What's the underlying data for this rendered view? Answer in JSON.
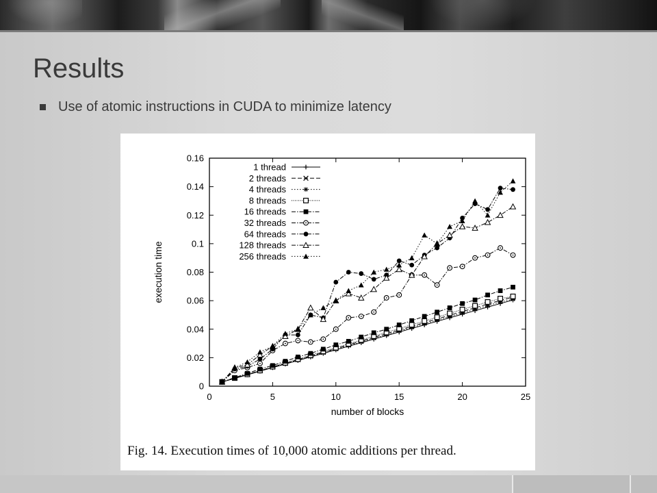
{
  "slide": {
    "title": "Results",
    "bullets": [
      {
        "text": "Use of atomic instructions in CUDA to minimize latency"
      }
    ]
  },
  "figure": {
    "caption": "Fig. 14.  Execution times of 10,000 atomic additions per thread."
  },
  "chart_data": {
    "type": "line",
    "xlabel": "number of blocks",
    "ylabel": "execution time",
    "xlim": [
      0,
      25
    ],
    "ylim": [
      0,
      0.16
    ],
    "xticks": [
      "0",
      "5",
      "10",
      "15",
      "20",
      "25"
    ],
    "yticks": [
      "0",
      "0.02",
      "0.04",
      "0.06",
      "0.08",
      "0.1",
      "0.12",
      "0.14",
      "0.16"
    ],
    "legend_position": "top-left",
    "grid": false,
    "x": [
      1,
      2,
      3,
      4,
      5,
      6,
      7,
      8,
      9,
      10,
      11,
      12,
      13,
      14,
      15,
      16,
      17,
      18,
      19,
      20,
      21,
      22,
      23,
      24
    ],
    "series": [
      {
        "name": "1 thread",
        "marker": "plus",
        "dash": "solid",
        "values": [
          0.003,
          0.0055,
          0.008,
          0.0105,
          0.013,
          0.0155,
          0.018,
          0.0205,
          0.023,
          0.0255,
          0.028,
          0.0305,
          0.033,
          0.0355,
          0.038,
          0.0405,
          0.043,
          0.0455,
          0.048,
          0.0505,
          0.053,
          0.0555,
          0.058,
          0.0605
        ]
      },
      {
        "name": "2 threads",
        "marker": "x",
        "dash": "dashed",
        "values": [
          0.003,
          0.0056,
          0.0082,
          0.0108,
          0.0134,
          0.016,
          0.0186,
          0.0212,
          0.0238,
          0.0264,
          0.029,
          0.0316,
          0.0342,
          0.0368,
          0.0394,
          0.042,
          0.0446,
          0.0472,
          0.0498,
          0.0524,
          0.055,
          0.0576,
          0.0602,
          0.0625
        ]
      },
      {
        "name": "4 threads",
        "marker": "asterisk",
        "dash": "dotted",
        "values": [
          0.003,
          0.0055,
          0.0081,
          0.0106,
          0.0132,
          0.0157,
          0.0183,
          0.0208,
          0.0234,
          0.0259,
          0.0285,
          0.031,
          0.0336,
          0.0361,
          0.0387,
          0.0412,
          0.0438,
          0.0463,
          0.0489,
          0.0514,
          0.054,
          0.0565,
          0.0591,
          0.061
        ]
      },
      {
        "name": "8 threads",
        "marker": "open-square",
        "dash": "fine-dotted",
        "values": [
          0.003,
          0.0057,
          0.0083,
          0.011,
          0.0137,
          0.0164,
          0.019,
          0.0217,
          0.0244,
          0.027,
          0.0297,
          0.0324,
          0.0351,
          0.0377,
          0.0404,
          0.0431,
          0.0457,
          0.0484,
          0.0511,
          0.0538,
          0.0564,
          0.0591,
          0.0615,
          0.063
        ]
      },
      {
        "name": "16 threads",
        "marker": "filled-square",
        "dash": "dash-dot",
        "values": [
          0.003,
          0.006,
          0.009,
          0.012,
          0.0145,
          0.0175,
          0.0205,
          0.023,
          0.026,
          0.029,
          0.0315,
          0.0345,
          0.0375,
          0.04,
          0.043,
          0.046,
          0.049,
          0.052,
          0.055,
          0.058,
          0.0605,
          0.064,
          0.067,
          0.0695
        ]
      },
      {
        "name": "32 threads",
        "marker": "open-circle",
        "dash": "dash-dot",
        "values": [
          0.003,
          0.011,
          0.013,
          0.016,
          0.025,
          0.03,
          0.032,
          0.031,
          0.033,
          0.04,
          0.048,
          0.049,
          0.052,
          0.062,
          0.064,
          0.078,
          0.078,
          0.071,
          0.083,
          0.084,
          0.09,
          0.092,
          0.097,
          0.092
        ]
      },
      {
        "name": "64 threads",
        "marker": "filled-circle",
        "dash": "dash-dot",
        "values": [
          0.003,
          0.012,
          0.014,
          0.019,
          0.026,
          0.036,
          0.036,
          0.05,
          0.048,
          0.073,
          0.08,
          0.079,
          0.075,
          0.078,
          0.088,
          0.085,
          0.092,
          0.097,
          0.104,
          0.118,
          0.128,
          0.124,
          0.139,
          0.138
        ]
      },
      {
        "name": "128 threads",
        "marker": "open-triangle",
        "dash": "dash-dot",
        "values": [
          0.003,
          0.013,
          0.015,
          0.022,
          0.028,
          0.035,
          0.04,
          0.055,
          0.047,
          0.06,
          0.065,
          0.062,
          0.068,
          0.076,
          0.082,
          0.078,
          0.091,
          0.1,
          0.106,
          0.112,
          0.111,
          0.115,
          0.12,
          0.126
        ]
      },
      {
        "name": "256 threads",
        "marker": "filled-triangle",
        "dash": "dotted",
        "values": [
          0.003,
          0.013,
          0.017,
          0.024,
          0.028,
          0.037,
          0.04,
          0.05,
          0.055,
          0.06,
          0.067,
          0.071,
          0.08,
          0.082,
          0.085,
          0.09,
          0.106,
          0.1,
          0.112,
          0.116,
          0.13,
          0.12,
          0.136,
          0.144
        ]
      }
    ]
  }
}
